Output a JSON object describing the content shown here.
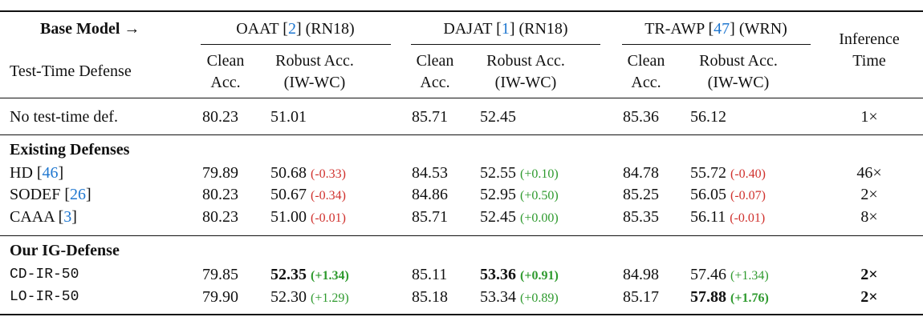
{
  "header": {
    "base_model": "Base Model →",
    "test_time_defense": "Test-Time Defense",
    "inference_time": [
      "Inference",
      "Time"
    ],
    "groups": [
      {
        "pre": "OAAT [",
        "cite": "2",
        "post": "] (RN18)"
      },
      {
        "pre": "DAJAT [",
        "cite": "1",
        "post": "] (RN18)"
      },
      {
        "pre": "TR-AWP [",
        "cite": "47",
        "post": "] (WRN)"
      }
    ],
    "clean_acc": [
      "Clean",
      "Acc."
    ],
    "robust_acc": [
      "Robust Acc.",
      "(IW-WC)"
    ]
  },
  "baseline_row": {
    "name": "No test-time def.",
    "results": [
      {
        "clean": "80.23",
        "robust": "51.01"
      },
      {
        "clean": "85.71",
        "robust": "52.45"
      },
      {
        "clean": "85.36",
        "robust": "56.12"
      }
    ],
    "inference": "1×"
  },
  "sections": [
    {
      "title": "Existing Defenses",
      "rows": [
        {
          "name": "HD [",
          "cite": "46",
          "post": "]",
          "results": [
            {
              "clean": "79.89",
              "robust": "50.68",
              "delta": "(-0.33)",
              "delta_color": "#d0312d"
            },
            {
              "clean": "84.53",
              "robust": "52.55",
              "delta": "(+0.10)",
              "delta_color": "#2e9a2e"
            },
            {
              "clean": "84.78",
              "robust": "55.72",
              "delta": "(-0.40)",
              "delta_color": "#d0312d"
            }
          ],
          "inference": "46×"
        },
        {
          "name": "SODEF [",
          "cite": "26",
          "post": "]",
          "results": [
            {
              "clean": "80.23",
              "robust": "50.67",
              "delta": "(-0.34)",
              "delta_color": "#d0312d"
            },
            {
              "clean": "84.86",
              "robust": "52.95",
              "delta": "(+0.50)",
              "delta_color": "#2e9a2e"
            },
            {
              "clean": "85.25",
              "robust": "56.05",
              "delta": "(-0.07)",
              "delta_color": "#d0312d"
            }
          ],
          "inference": "2×"
        },
        {
          "name": "CAAA [",
          "cite": "3",
          "post": "]",
          "results": [
            {
              "clean": "80.23",
              "robust": "51.00",
              "delta": "(-0.01)",
              "delta_color": "#d0312d"
            },
            {
              "clean": "85.71",
              "robust": "52.45",
              "delta": "(+0.00)",
              "delta_color": "#2e9a2e"
            },
            {
              "clean": "85.35",
              "robust": "56.11",
              "delta": "(-0.01)",
              "delta_color": "#d0312d"
            }
          ],
          "inference": "8×"
        }
      ]
    },
    {
      "title": "Our IG-Defense",
      "rows": [
        {
          "name": "CD-IR-50",
          "code": true,
          "results": [
            {
              "clean": "79.85",
              "robust": "52.35",
              "delta": "(+1.34)",
              "delta_color": "#2e9a2e",
              "bold": true
            },
            {
              "clean": "85.11",
              "robust": "53.36",
              "delta": "(+0.91)",
              "delta_color": "#2e9a2e",
              "bold": true
            },
            {
              "clean": "84.98",
              "robust": "57.46",
              "delta": "(+1.34)",
              "delta_color": "#2e9a2e"
            }
          ],
          "inference": "2×",
          "inference_bold": true
        },
        {
          "name": "LO-IR-50",
          "code": true,
          "results": [
            {
              "clean": "79.90",
              "robust": "52.30",
              "delta": "(+1.29)",
              "delta_color": "#2e9a2e"
            },
            {
              "clean": "85.18",
              "robust": "53.34",
              "delta": "(+0.89)",
              "delta_color": "#2e9a2e"
            },
            {
              "clean": "85.17",
              "robust": "57.88",
              "delta": "(+1.76)",
              "delta_color": "#2e9a2e",
              "bold": true
            }
          ],
          "inference": "2×",
          "inference_bold": true
        }
      ]
    }
  ]
}
